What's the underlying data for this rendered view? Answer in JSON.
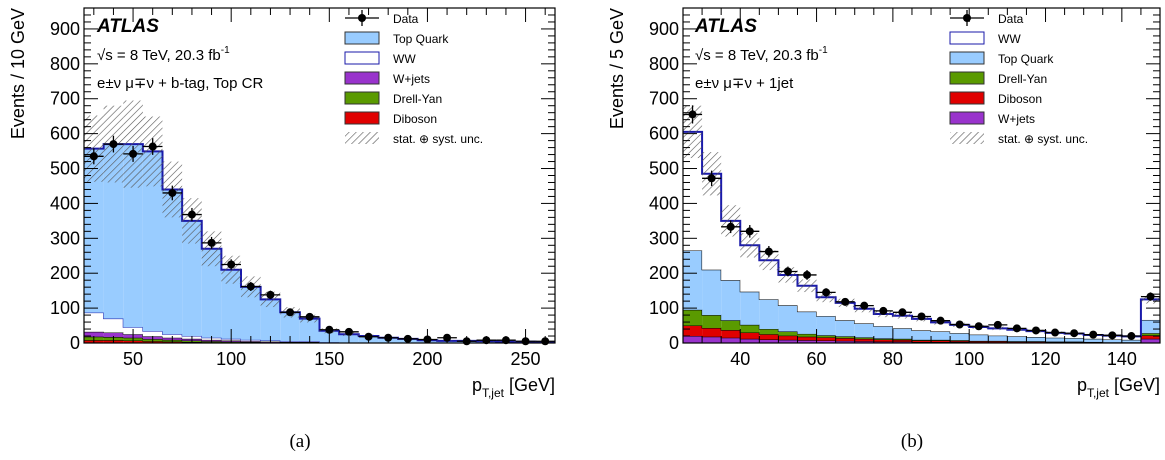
{
  "chart_data": [
    {
      "type": "stacked-histogram",
      "panel_label": "(a)",
      "title_lines": [
        "ATLAS",
        "√s = 8 TeV, 20.3 fb-1",
        "e±ν μ∓ν + b-tag, Top CR"
      ],
      "ylabel": "Events / 10 GeV",
      "xlabel": "p_T,jet [GeV]",
      "xlim": [
        25,
        265
      ],
      "ylim": [
        0,
        960
      ],
      "xticks": [
        50,
        100,
        150,
        200,
        250
      ],
      "yticks": [
        0,
        100,
        200,
        300,
        400,
        500,
        600,
        700,
        800,
        900
      ],
      "bin_edges": [
        25,
        35,
        45,
        55,
        65,
        75,
        85,
        95,
        105,
        115,
        125,
        135,
        145,
        155,
        165,
        175,
        185,
        195,
        205,
        215,
        225,
        235,
        245,
        255,
        265
      ],
      "legend": [
        "Data",
        "Top Quark",
        "WW",
        "W+jets",
        "Drell-Yan",
        "Diboson",
        "stat. ⊕ syst. unc."
      ],
      "series": [
        {
          "name": "Diboson",
          "color": "#e00000",
          "values": [
            8,
            8,
            7,
            5,
            4,
            3,
            2,
            2,
            1,
            1,
            1,
            1,
            0,
            0,
            0,
            0,
            0,
            0,
            0,
            0,
            0,
            0,
            0,
            0
          ]
        },
        {
          "name": "Drell-Yan",
          "color": "#5a9a00",
          "values": [
            10,
            9,
            8,
            6,
            5,
            4,
            3,
            2,
            2,
            1,
            1,
            1,
            0,
            0,
            0,
            0,
            0,
            0,
            0,
            0,
            0,
            0,
            0,
            0
          ]
        },
        {
          "name": "W+jets",
          "color": "#9933cc",
          "values": [
            14,
            13,
            10,
            8,
            6,
            5,
            4,
            3,
            2,
            2,
            1,
            1,
            1,
            0,
            0,
            0,
            0,
            0,
            0,
            0,
            0,
            0,
            0,
            0
          ]
        },
        {
          "name": "WW",
          "color": "#ffffff",
          "values": [
            55,
            40,
            20,
            15,
            10,
            8,
            6,
            5,
            4,
            3,
            2,
            2,
            1,
            1,
            1,
            0,
            0,
            0,
            0,
            0,
            0,
            0,
            0,
            0
          ]
        },
        {
          "name": "Top Quark",
          "color": "#99ccff",
          "values": [
            470,
            500,
            525,
            515,
            415,
            330,
            255,
            198,
            152,
            118,
            83,
            65,
            33,
            24,
            19,
            15,
            12,
            8,
            6,
            6,
            5,
            4,
            4,
            3
          ]
        }
      ],
      "uncertainty": [
        95,
        110,
        125,
        100,
        80,
        65,
        50,
        40,
        30,
        22,
        15,
        11,
        7,
        5,
        4,
        3,
        2,
        2,
        1,
        1,
        1,
        1,
        1,
        1
      ],
      "data": {
        "values": [
          535,
          570,
          542,
          563,
          430,
          368,
          287,
          225,
          162,
          138,
          88,
          75,
          38,
          32,
          18,
          15,
          12,
          10,
          15,
          5,
          8,
          8,
          5,
          5
        ],
        "errors": [
          23,
          24,
          23,
          24,
          21,
          19,
          17,
          15,
          13,
          12,
          9,
          9,
          6,
          6,
          4,
          4,
          3,
          3,
          4,
          2,
          3,
          3,
          2,
          2
        ]
      }
    },
    {
      "type": "stacked-histogram",
      "panel_label": "(b)",
      "title_lines": [
        "ATLAS",
        "√s = 8 TeV, 20.3 fb-1",
        "e±ν μ∓ν + 1jet"
      ],
      "ylabel": "Events / 5 GeV",
      "xlabel": "p_T,jet [GeV]",
      "xlim": [
        25,
        150
      ],
      "ylim": [
        0,
        960
      ],
      "xticks": [
        40,
        60,
        80,
        100,
        120,
        140
      ],
      "yticks": [
        0,
        100,
        200,
        300,
        400,
        500,
        600,
        700,
        800,
        900
      ],
      "bin_edges": [
        25,
        30,
        35,
        40,
        45,
        50,
        55,
        60,
        65,
        70,
        75,
        80,
        85,
        90,
        95,
        100,
        105,
        110,
        115,
        120,
        125,
        130,
        135,
        140,
        145,
        150
      ],
      "legend": [
        "Data",
        "WW",
        "Top Quark",
        "Drell-Yan",
        "Diboson",
        "W+jets",
        "stat. ⊕ syst. unc."
      ],
      "series": [
        {
          "name": "W+jets",
          "color": "#9933cc",
          "values": [
            20,
            18,
            15,
            12,
            10,
            9,
            8,
            7,
            6,
            5,
            4,
            4,
            3,
            3,
            3,
            2,
            2,
            2,
            2,
            1,
            1,
            1,
            1,
            1,
            12
          ]
        },
        {
          "name": "Diboson",
          "color": "#e00000",
          "values": [
            30,
            25,
            22,
            18,
            15,
            12,
            10,
            9,
            8,
            7,
            6,
            5,
            4,
            4,
            3,
            3,
            3,
            2,
            2,
            2,
            2,
            1,
            1,
            1,
            10
          ]
        },
        {
          "name": "Drell-Yan",
          "color": "#5a9a00",
          "values": [
            45,
            37,
            28,
            22,
            15,
            12,
            8,
            6,
            5,
            4,
            3,
            3,
            2,
            2,
            2,
            1,
            1,
            1,
            1,
            1,
            1,
            1,
            0,
            0,
            6
          ]
        },
        {
          "name": "Top Quark",
          "color": "#99ccff",
          "values": [
            170,
            130,
            115,
            95,
            85,
            75,
            64,
            55,
            46,
            40,
            35,
            30,
            27,
            24,
            20,
            18,
            15,
            14,
            12,
            11,
            10,
            9,
            8,
            7,
            38
          ]
        },
        {
          "name": "WW",
          "color": "#ffffff",
          "values": [
            340,
            275,
            170,
            133,
            112,
            87,
            74,
            54,
            50,
            42,
            35,
            36,
            33,
            26,
            24,
            22,
            21,
            19,
            17,
            14,
            13,
            11,
            11,
            10,
            59
          ]
        }
      ],
      "uncertainty": [
        75,
        62,
        45,
        35,
        28,
        22,
        18,
        14,
        12,
        10,
        9,
        8,
        7,
        6,
        6,
        5,
        5,
        4,
        4,
        4,
        3,
        3,
        3,
        3,
        12
      ],
      "data": {
        "values": [
          655,
          472,
          333,
          320,
          262,
          205,
          195,
          145,
          118,
          107,
          92,
          88,
          76,
          64,
          53,
          48,
          52,
          42,
          36,
          30,
          28,
          24,
          22,
          20,
          133
        ],
        "errors": [
          26,
          22,
          18,
          18,
          16,
          14,
          14,
          12,
          11,
          10,
          10,
          9,
          9,
          8,
          7,
          7,
          7,
          6,
          6,
          5,
          5,
          5,
          5,
          4,
          12
        ]
      }
    }
  ]
}
